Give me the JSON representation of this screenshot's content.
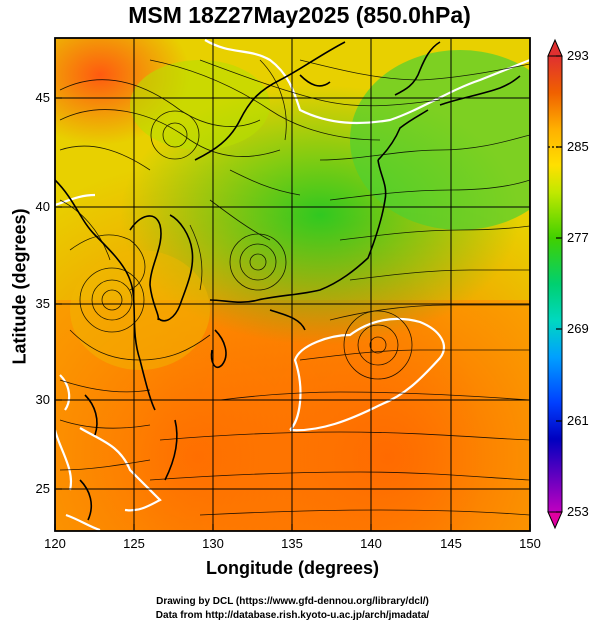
{
  "map": {
    "title": "MSM 18Z27May2025 (850.0hPa)",
    "xlabel": "Longitude (degrees)",
    "ylabel": "Latitude  (degrees)",
    "x_ticks": [
      "120",
      "125",
      "130",
      "135",
      "140",
      "145",
      "150"
    ],
    "y_ticks": [
      "25",
      "30",
      "35",
      "40",
      "45"
    ],
    "lon_range": [
      120,
      150
    ],
    "lat_range": [
      22.5,
      48
    ],
    "field": "temperature (K) shaded with wind streamlines",
    "contour_color": "#ffffff",
    "coastline_color": "#000000"
  },
  "colorbar": {
    "labels": [
      "293",
      "285",
      "277",
      "269",
      "261",
      "253"
    ],
    "range": [
      253,
      293
    ],
    "colors": [
      "#e0007c",
      "#c000c0",
      "#6000c0",
      "#0000c0",
      "#0040ff",
      "#00a0ff",
      "#00d8c0",
      "#00d060",
      "#40d000",
      "#a0e000",
      "#e0f000",
      "#ffe000",
      "#ffb000",
      "#ff8000",
      "#f06000",
      "#e03030"
    ]
  },
  "credits": {
    "line1": "Drawing by DCL (https://www.gfd-dennou.org/library/dcl/)",
    "line2": "Data from http://database.rish.kyoto-u.ac.jp/arch/jmadata/"
  }
}
